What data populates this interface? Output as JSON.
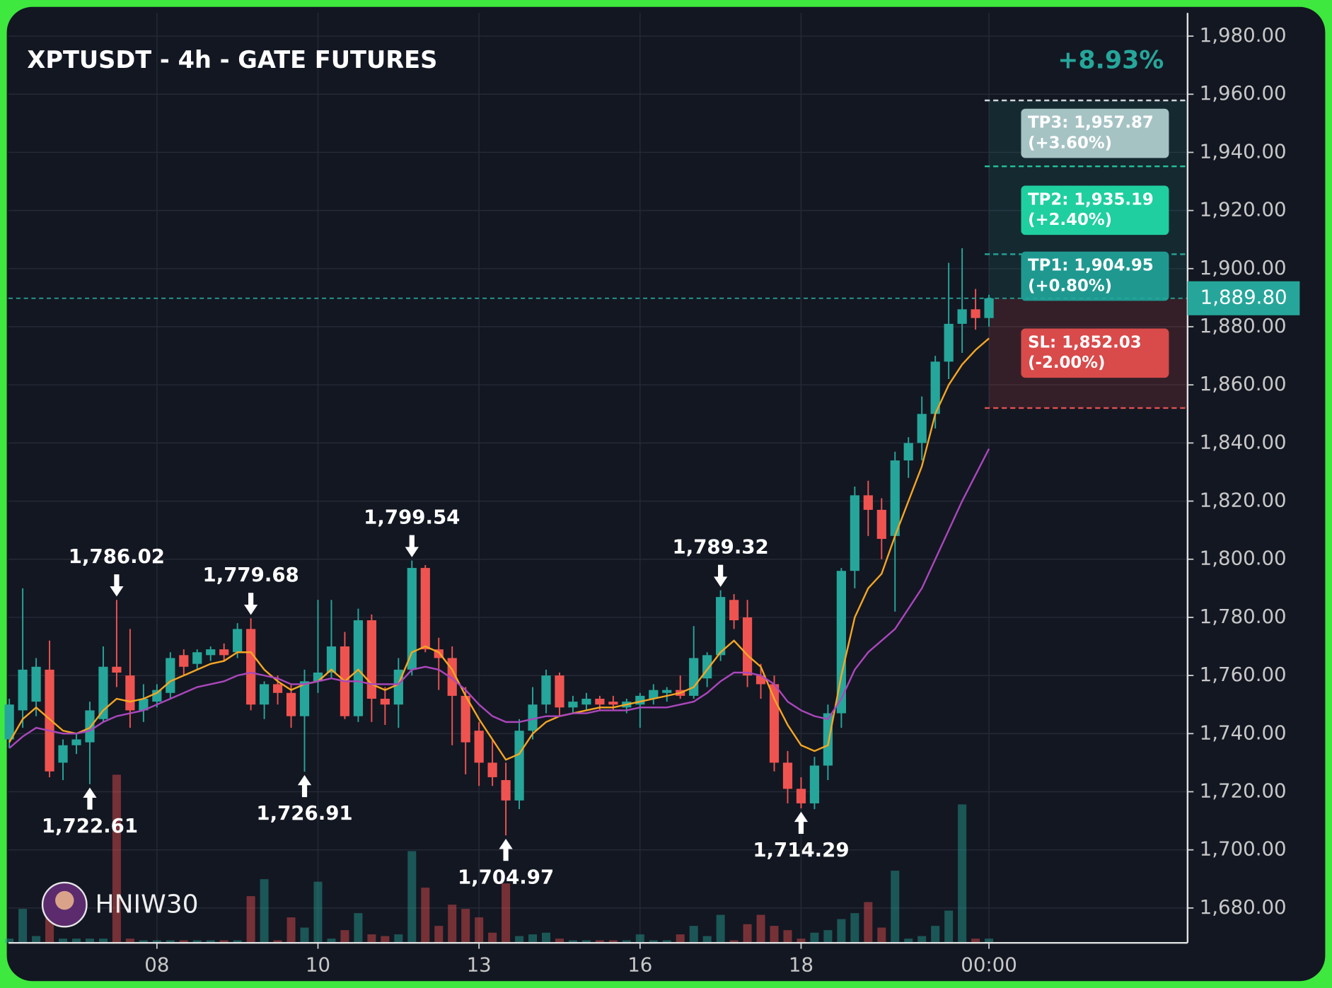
{
  "chart_data": {
    "type": "candlestick",
    "title": "XPTUSDT - 4h - GATE FUTURES",
    "change_label": "+8.93%",
    "watermark": "HNIW30",
    "up_color": "#26a69a",
    "down_color": "#ef5350",
    "grid": true,
    "xlim": [
      -0.06,
      87.8
    ],
    "xticks": [
      {
        "value": 11,
        "label": "08"
      },
      {
        "value": 23,
        "label": "10"
      },
      {
        "value": 35,
        "label": "13"
      },
      {
        "value": 47,
        "label": "16"
      },
      {
        "value": 59,
        "label": "18"
      },
      {
        "value": 73,
        "label": "00:00"
      }
    ],
    "ylim": [
      1668,
      1988
    ],
    "yticks": [
      {
        "value": 1680,
        "label": "1,680.00"
      },
      {
        "value": 1700,
        "label": "1,700.00"
      },
      {
        "value": 1720,
        "label": "1,720.00"
      },
      {
        "value": 1740,
        "label": "1,740.00"
      },
      {
        "value": 1760,
        "label": "1,760.00"
      },
      {
        "value": 1780,
        "label": "1,780.00"
      },
      {
        "value": 1800,
        "label": "1,800.00"
      },
      {
        "value": 1820,
        "label": "1,820.00"
      },
      {
        "value": 1840,
        "label": "1,840.00"
      },
      {
        "value": 1860,
        "label": "1,860.00"
      },
      {
        "value": 1880,
        "label": "1,880.00"
      },
      {
        "value": 1900,
        "label": "1,900.00"
      },
      {
        "value": 1920,
        "label": "1,920.00"
      },
      {
        "value": 1940,
        "label": "1,940.00"
      },
      {
        "value": 1960,
        "label": "1,960.00"
      },
      {
        "value": 1980,
        "label": "1,980.00"
      }
    ],
    "open": [
      1738,
      1748,
      1751,
      1762,
      1730,
      1736,
      1737,
      1745,
      1763,
      1760,
      1748,
      1751,
      1754,
      1767,
      1764,
      1767,
      1769,
      1768,
      1776,
      1750,
      1757,
      1754,
      1746,
      1758,
      1761,
      1770,
      1746,
      1779,
      1752,
      1750,
      1762,
      1797,
      1769,
      1766,
      1753,
      1741,
      1730,
      1724,
      1717,
      1741,
      1750,
      1760,
      1749,
      1750,
      1752,
      1751,
      1749,
      1750,
      1752,
      1754,
      1755,
      1753,
      1759,
      1767,
      1786,
      1780,
      1760,
      1757,
      1730,
      1721,
      1716,
      1729,
      1747,
      1796,
      1822,
      1817,
      1808,
      1834,
      1840,
      1850,
      1868,
      1881,
      1886,
      1883
    ],
    "high": [
      1752,
      1790,
      1766,
      1772,
      1738,
      1740,
      1751,
      1770,
      1786.02,
      1776,
      1757,
      1757,
      1768,
      1769,
      1769,
      1770,
      1771,
      1778,
      1779.68,
      1758,
      1760,
      1757,
      1762,
      1786,
      1786,
      1775,
      1783,
      1781,
      1756,
      1766,
      1799.54,
      1798,
      1773,
      1770,
      1756,
      1744,
      1738,
      1730,
      1745,
      1756,
      1762,
      1761,
      1753,
      1754,
      1753,
      1753,
      1752,
      1754,
      1757,
      1756,
      1760,
      1777,
      1768,
      1789.32,
      1788,
      1786,
      1764,
      1760,
      1734,
      1725,
      1732,
      1750,
      1797,
      1825,
      1827,
      1821,
      1837,
      1842,
      1856,
      1870,
      1902,
      1907,
      1893,
      1891
    ],
    "low": [
      1735,
      1742,
      1746,
      1725,
      1724,
      1733,
      1722.61,
      1744,
      1756,
      1742,
      1744,
      1749,
      1752,
      1760,
      1762,
      1765,
      1765,
      1766,
      1748,
      1745,
      1750,
      1742,
      1726.91,
      1754,
      1759,
      1745,
      1744,
      1744,
      1743,
      1742,
      1760,
      1768,
      1755,
      1736,
      1726,
      1722,
      1722,
      1704.97,
      1714,
      1738,
      1747,
      1746,
      1747,
      1748,
      1748,
      1748,
      1747,
      1742,
      1750,
      1751,
      1752,
      1752,
      1756,
      1765,
      1776,
      1756,
      1752,
      1727,
      1716,
      1714.29,
      1714,
      1724,
      1742,
      1790,
      1808,
      1800,
      1782,
      1828,
      1834,
      1845,
      1862,
      1871,
      1879,
      1880
    ],
    "close": [
      1750,
      1762,
      1763,
      1727,
      1736,
      1738,
      1748,
      1763,
      1761,
      1748,
      1752,
      1755,
      1766,
      1763,
      1768,
      1769,
      1767,
      1776,
      1750,
      1757,
      1754,
      1746,
      1758,
      1761,
      1770,
      1746,
      1779,
      1752,
      1750,
      1762,
      1797,
      1769,
      1766,
      1753,
      1737,
      1730,
      1725,
      1717,
      1741,
      1750,
      1760,
      1749,
      1751,
      1752,
      1750,
      1750,
      1751,
      1753,
      1755,
      1755,
      1753,
      1766,
      1767,
      1787,
      1779,
      1760,
      1757,
      1730,
      1721,
      1716,
      1729,
      1747,
      1796,
      1822,
      1817,
      1807,
      1834,
      1840,
      1850,
      1868,
      1881,
      1886,
      1883,
      1889.8
    ],
    "overlays": [
      {
        "color": "#f5a623",
        "values": [
          1737,
          1745,
          1749,
          1745,
          1741,
          1740,
          1742,
          1748,
          1752,
          1751,
          1752,
          1754,
          1758,
          1760,
          1762,
          1764,
          1765,
          1768,
          1768,
          1762,
          1758,
          1755,
          1757,
          1758,
          1762,
          1758,
          1762,
          1757,
          1755,
          1757,
          1768,
          1770,
          1768,
          1762,
          1753,
          1745,
          1738,
          1731,
          1733,
          1740,
          1744,
          1746,
          1747,
          1748,
          1749,
          1749,
          1750,
          1751,
          1752,
          1753,
          1754,
          1756,
          1762,
          1768,
          1772,
          1767,
          1763,
          1752,
          1743,
          1736,
          1734,
          1736,
          1760,
          1780,
          1790,
          1795,
          1808,
          1820,
          1832,
          1850,
          1860,
          1867,
          1872,
          1876
        ]
      },
      {
        "color": "#ab47bc",
        "values": [
          1735,
          1739,
          1742,
          1741,
          1740,
          1740,
          1741,
          1744,
          1746,
          1747,
          1748,
          1750,
          1752,
          1754,
          1756,
          1757,
          1758,
          1760,
          1761,
          1760,
          1759,
          1757,
          1757,
          1758,
          1759,
          1758,
          1758,
          1757,
          1757,
          1757,
          1762,
          1763,
          1762,
          1759,
          1755,
          1750,
          1746,
          1744,
          1744,
          1745,
          1746,
          1746,
          1747,
          1747,
          1748,
          1748,
          1748,
          1749,
          1749,
          1749,
          1750,
          1751,
          1754,
          1758,
          1761,
          1761,
          1760,
          1757,
          1751,
          1748,
          1746,
          1745,
          1752,
          1762,
          1768,
          1772,
          1776,
          1783,
          1790,
          1800,
          1810,
          1820,
          1829,
          1838
        ]
      }
    ],
    "volume": {
      "ylim": [
        0,
        200
      ],
      "values": [
        5,
        40,
        8,
        50,
        5,
        5,
        5,
        5,
        198,
        5,
        3,
        3,
        3,
        3,
        3,
        3,
        3,
        3,
        55,
        75,
        3,
        30,
        18,
        72,
        5,
        15,
        35,
        10,
        8,
        10,
        108,
        65,
        20,
        45,
        40,
        30,
        12,
        70,
        8,
        10,
        12,
        5,
        3,
        3,
        3,
        3,
        3,
        10,
        3,
        3,
        10,
        20,
        8,
        33,
        3,
        22,
        33,
        20,
        15,
        5,
        12,
        15,
        28,
        35,
        48,
        18,
        85,
        5,
        8,
        20,
        38,
        163,
        5,
        5
      ]
    },
    "last_price": {
      "value": 1889.8,
      "label": "1,889.80",
      "color": "#26a69a"
    },
    "levels": [
      {
        "label": "TP3: 1,957.87",
        "note": "(+3.60%)",
        "value": 1957.87,
        "color": "#a6c3c4",
        "line_color": "#d0d4d8"
      },
      {
        "label": "TP2: 1,935.19",
        "note": "(+2.40%)",
        "value": 1935.19,
        "color": "#1fcf9f",
        "line_color": "#22c29c"
      },
      {
        "label": "TP1: 1,904.95",
        "note": "(+0.80%)",
        "value": 1904.95,
        "color": "#1f9990",
        "line_color": "#26a69a"
      },
      {
        "label": "SL: 1,852.03",
        "note": "(-2.00%)",
        "value": 1852.03,
        "color": "#d94a4a",
        "line_color": "#e05050"
      }
    ],
    "annotations": [
      {
        "label": "1,786.02",
        "value": 1786.02
      },
      {
        "label": "1,722.61",
        "value": 1722.61
      },
      {
        "label": "1,779.68",
        "value": 1779.68
      },
      {
        "label": "1,726.91",
        "value": 1726.91
      },
      {
        "label": "1,799.54",
        "value": 1799.54
      },
      {
        "label": "1,704.97",
        "value": 1704.97
      },
      {
        "label": "1,789.32",
        "value": 1789.32
      },
      {
        "label": "1,714.29",
        "value": 1714.29
      }
    ]
  }
}
